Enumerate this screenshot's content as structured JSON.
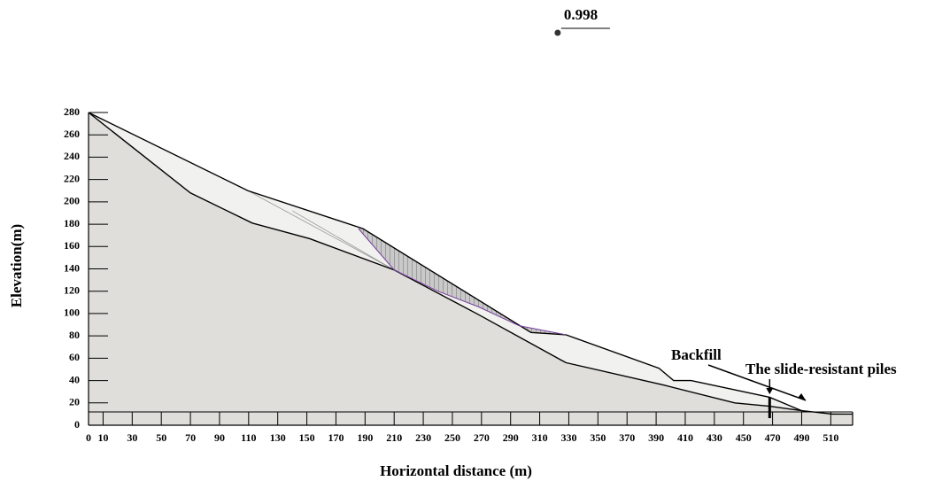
{
  "chart_data": {
    "type": "line",
    "ylabel": "Elevation(m)",
    "xlabel": "Horizontal distance (m)",
    "xlim": [
      0,
      525
    ],
    "ylim": [
      0,
      280
    ],
    "xticks": [
      0,
      10,
      30,
      50,
      70,
      90,
      110,
      130,
      150,
      170,
      190,
      210,
      230,
      250,
      270,
      290,
      310,
      330,
      350,
      370,
      390,
      410,
      430,
      450,
      470,
      490,
      510
    ],
    "yticks": [
      0,
      20,
      40,
      60,
      80,
      100,
      120,
      140,
      160,
      180,
      200,
      220,
      240,
      260,
      280
    ],
    "series": [
      {
        "color": "#000000",
        "x": [
          0,
          109.5,
          188.6,
          304,
          328,
          392,
          402,
          414,
          468,
          490,
          511,
          525
        ],
        "values": [
          280,
          210,
          176,
          83,
          81,
          51,
          40,
          40,
          25,
          13,
          10,
          10
        ]
      },
      {
        "color": "#000000",
        "x": [
          0,
          70,
          112.5,
          152,
          210,
          268,
          328,
          395,
          444,
          468,
          490
        ],
        "values": [
          280,
          208,
          181,
          167,
          139,
          99,
          56,
          36,
          20,
          17,
          13
        ]
      },
      {
        "color": "#7a3fa0",
        "x": [
          185.5,
          210,
          240,
          268,
          296,
          328
        ],
        "values": [
          176,
          139,
          120,
          106,
          89,
          81
        ]
      }
    ],
    "annotations": [
      {
        "text": "0.998",
        "x": 326,
        "y": 355
      },
      {
        "text": "Backfill",
        "x": 432,
        "y": 27
      },
      {
        "text": "The slide-resistant piles",
        "x": 468,
        "y": 25
      }
    ]
  }
}
